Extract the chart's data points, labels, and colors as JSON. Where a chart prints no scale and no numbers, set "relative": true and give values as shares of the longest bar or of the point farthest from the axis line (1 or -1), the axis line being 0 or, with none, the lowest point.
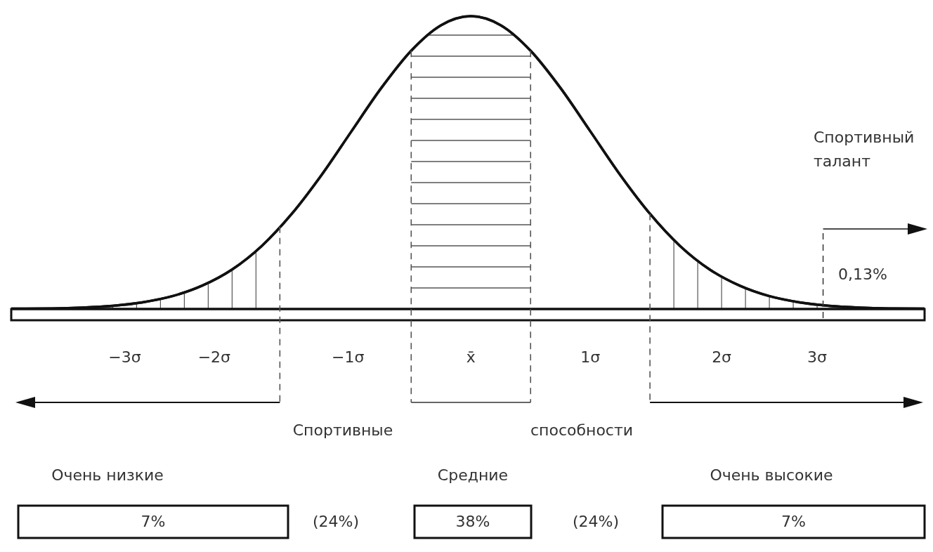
{
  "chart_data": {
    "type": "area",
    "relative": true,
    "color": "#111111",
    "x": [
      -3.85,
      -3.5,
      -3.25,
      -3,
      -2.75,
      -2.5,
      -2.25,
      -2,
      -1.75,
      -1.5,
      -1.25,
      -1,
      -0.75,
      -0.5,
      -0.25,
      0,
      0.25,
      0.5,
      0.75,
      1,
      1.25,
      1.5,
      1.75,
      2,
      2.25,
      2.5,
      2.75,
      3,
      3.25,
      3.5,
      3.8
    ],
    "values": [
      0.001,
      0.002,
      0.005,
      0.011,
      0.023,
      0.044,
      0.08,
      0.135,
      0.216,
      0.325,
      0.458,
      0.607,
      0.755,
      0.882,
      0.969,
      1,
      0.969,
      0.882,
      0.755,
      0.607,
      0.458,
      0.325,
      0.216,
      0.135,
      0.08,
      0.044,
      0.023,
      0.011,
      0.005,
      0.002,
      0.001
    ],
    "xlim": [
      -3.85,
      3.8
    ],
    "xticks": [
      {
        "value": -2.9,
        "label": "−3σ"
      },
      {
        "value": -2.15,
        "label": "−2σ"
      },
      {
        "value": -1.03,
        "label": "−1σ"
      },
      {
        "value": 0,
        "label": "x̄"
      },
      {
        "value": 1,
        "label": "1σ"
      },
      {
        "value": 2.1,
        "label": "2σ"
      },
      {
        "value": 2.9,
        "label": "3σ"
      }
    ],
    "ref_lines": [
      {
        "axis": "x",
        "value": -1.6,
        "line_style": "dashed"
      },
      {
        "axis": "x",
        "value": -0.5,
        "line_style": "dashed"
      },
      {
        "axis": "x",
        "value": 0.5,
        "line_style": "dashed"
      },
      {
        "axis": "x",
        "value": 1.5,
        "line_style": "dashed"
      },
      {
        "axis": "x",
        "value": 2.95,
        "line_style": "dashed"
      }
    ],
    "annotations": [
      "0,13%",
      "Спортивный\nталант",
      "Спортивные",
      "способности",
      "Очень низкие",
      "Средние",
      "Очень высокие",
      "7%",
      "(24%)",
      "38%",
      "(24%)",
      "7%"
    ]
  }
}
